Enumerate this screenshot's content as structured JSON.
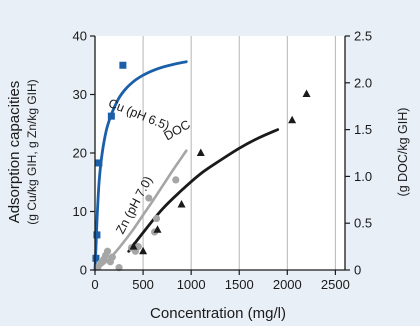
{
  "chart_data": {
    "type": "scatter",
    "xlabel": "Concentration (mg/l)",
    "xlim": [
      0,
      2600
    ],
    "xticks": [
      0,
      500,
      1000,
      1500,
      2000,
      2500
    ],
    "left_axis": {
      "label_line1": "Adsorption capacities",
      "label_line2": "(g Cu/kg GIH, g Zn/kg GIH)",
      "ylim": [
        0,
        40
      ],
      "ticks": [
        0,
        10,
        20,
        30,
        40
      ]
    },
    "right_axis": {
      "label": "(g DOC/kg GIH)",
      "ylim": [
        0,
        2.5
      ],
      "ticks": [
        0,
        0.5,
        1.0,
        1.5,
        2.0,
        2.5
      ],
      "tick_labels": [
        "0",
        "0.5",
        "1.0",
        "1.5",
        "2.0",
        "2.5"
      ]
    },
    "grid": "vertical",
    "series": [
      {
        "name": "Cu (pH 6.5)",
        "axis": "left",
        "color": "#1a5fa8",
        "marker": "square",
        "points": [
          [
            10,
            2
          ],
          [
            20,
            6
          ],
          [
            40,
            18.3
          ],
          [
            170,
            26.3
          ],
          [
            290,
            35
          ]
        ],
        "curve": [
          [
            0,
            0
          ],
          [
            10,
            4
          ],
          [
            25,
            10
          ],
          [
            45,
            15.5
          ],
          [
            75,
            20
          ],
          [
            120,
            24
          ],
          [
            180,
            27
          ],
          [
            260,
            29.7
          ],
          [
            370,
            31.8
          ],
          [
            500,
            33.3
          ],
          [
            650,
            34.4
          ],
          [
            800,
            35.1
          ],
          [
            950,
            35.6
          ]
        ]
      },
      {
        "name": "Zn (pH 7.0)",
        "axis": "left",
        "color": "#a6a6a6",
        "marker": "circle",
        "points": [
          [
            30,
            0.5
          ],
          [
            60,
            1.2
          ],
          [
            90,
            1.8
          ],
          [
            110,
            2.5
          ],
          [
            130,
            3.2
          ],
          [
            160,
            1.4
          ],
          [
            180,
            2.2
          ],
          [
            250,
            0.4
          ],
          [
            380,
            3.8
          ],
          [
            420,
            3.2
          ],
          [
            450,
            4.0
          ],
          [
            560,
            12.3
          ],
          [
            620,
            6.5
          ],
          [
            640,
            8.8
          ],
          [
            840,
            15.4
          ]
        ],
        "curve": [
          [
            0,
            0
          ],
          [
            100,
            1.2
          ],
          [
            200,
            2.8
          ],
          [
            300,
            4.8
          ],
          [
            400,
            7.0
          ],
          [
            500,
            9.4
          ],
          [
            600,
            11.8
          ],
          [
            700,
            14.3
          ],
          [
            800,
            16.8
          ],
          [
            900,
            19.2
          ],
          [
            950,
            20.4
          ]
        ]
      },
      {
        "name": "DOC",
        "axis": "right",
        "color": "#1a1a1a",
        "marker": "triangle",
        "points": [
          [
            400,
            0.25
          ],
          [
            500,
            0.2
          ],
          [
            650,
            0.43
          ],
          [
            900,
            0.7
          ],
          [
            1100,
            1.25
          ],
          [
            2050,
            1.6
          ],
          [
            2200,
            1.88
          ]
        ],
        "curve": [
          [
            350,
            0.2
          ],
          [
            500,
            0.4
          ],
          [
            700,
            0.65
          ],
          [
            900,
            0.85
          ],
          [
            1100,
            1.03
          ],
          [
            1300,
            1.17
          ],
          [
            1500,
            1.3
          ],
          [
            1700,
            1.41
          ],
          [
            1900,
            1.5
          ]
        ]
      }
    ]
  }
}
